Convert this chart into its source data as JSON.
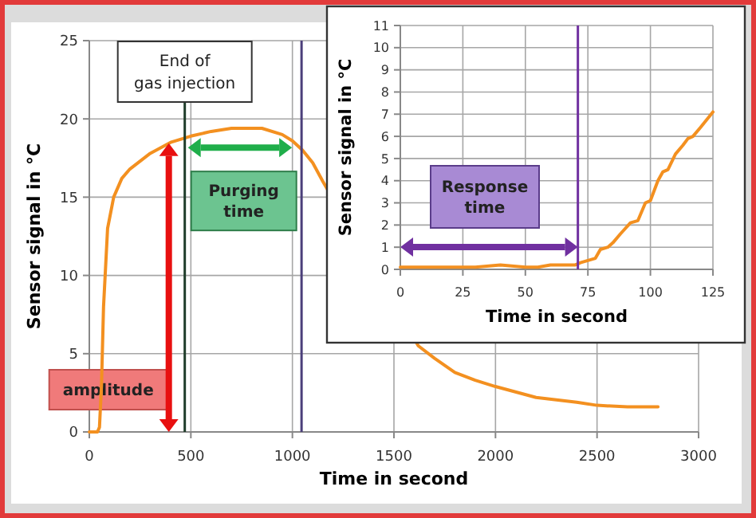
{
  "chart_data": [
    {
      "type": "line",
      "xlabel": "Time in second",
      "ylabel": "Sensor signal in °C",
      "xlim": [
        0,
        3000
      ],
      "ylim": [
        0,
        25
      ],
      "xticks": [
        0,
        500,
        1000,
        1500,
        2000,
        2500,
        3000
      ],
      "yticks": [
        0,
        5,
        10,
        15,
        20,
        25
      ],
      "grid": true,
      "x": [
        0,
        40,
        50,
        60,
        70,
        90,
        120,
        160,
        200,
        300,
        400,
        500,
        600,
        700,
        850,
        950,
        1000,
        1050,
        1100,
        1150,
        1620,
        1700,
        1800,
        1900,
        2000,
        2200,
        2400,
        2500,
        2650,
        2800
      ],
      "series": [
        {
          "color": "#f39020",
          "values": [
            0,
            0,
            0.3,
            3,
            8,
            13,
            15,
            16.2,
            16.8,
            17.8,
            18.5,
            18.9,
            19.2,
            19.4,
            19.4,
            19,
            18.6,
            18,
            17.2,
            16,
            5.5,
            4.7,
            3.8,
            3.3,
            2.9,
            2.2,
            1.9,
            1.7,
            1.6,
            1.6
          ]
        }
      ],
      "ref_lines": [
        {
          "axis": "x",
          "value": 470,
          "label": "End of gas injection",
          "color": "#1f3d2a"
        },
        {
          "axis": "x",
          "value": 1045,
          "label": null,
          "color": "#4b3f7a"
        }
      ],
      "annotations": [
        "amplitude",
        "Purging time"
      ]
    },
    {
      "type": "line",
      "xlabel": "Time in second",
      "ylabel": "Sensor signal in °C",
      "xlim": [
        0,
        125
      ],
      "ylim": [
        0,
        11
      ],
      "xticks": [
        0,
        25,
        50,
        75,
        100,
        125
      ],
      "yticks": [
        0,
        1,
        2,
        3,
        4,
        5,
        6,
        7,
        8,
        9,
        10,
        11
      ],
      "grid": true,
      "x": [
        0,
        10,
        20,
        30,
        40,
        50,
        55,
        60,
        65,
        70,
        72,
        75,
        78,
        80,
        83,
        85,
        88,
        92,
        95,
        98,
        100,
        103,
        105,
        107,
        110,
        113,
        115,
        117,
        120,
        125
      ],
      "series": [
        {
          "color": "#f39020",
          "values": [
            0.1,
            0.1,
            0.1,
            0.1,
            0.2,
            0.1,
            0.1,
            0.2,
            0.2,
            0.2,
            0.3,
            0.4,
            0.5,
            0.9,
            1,
            1.2,
            1.6,
            2.1,
            2.2,
            3,
            3.1,
            4,
            4.4,
            4.5,
            5.2,
            5.6,
            5.9,
            6,
            6.4,
            7.1
          ]
        }
      ],
      "ref_lines": [
        {
          "axis": "x",
          "value": 71,
          "label": null,
          "color": "#7030a0"
        }
      ],
      "annotations": [
        "Response time"
      ]
    }
  ]
}
